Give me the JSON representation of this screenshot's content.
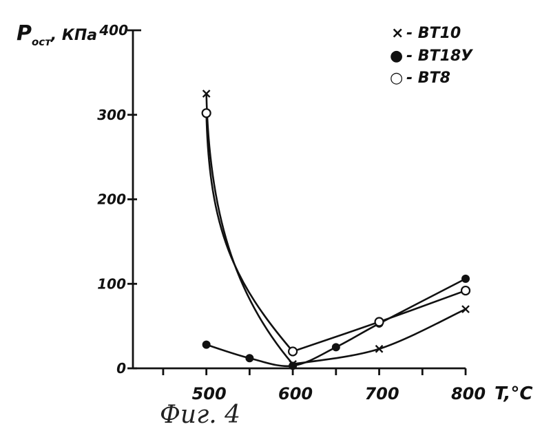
{
  "chart_data": {
    "type": "line",
    "ylabel": "P_ост, КПа",
    "xlabel": "T,°C",
    "xlim": [
      415,
      800
    ],
    "ylim": [
      0,
      400
    ],
    "x_ticks": [
      500,
      600,
      700,
      800
    ],
    "y_ticks": [
      0,
      100,
      200,
      300,
      400
    ],
    "legend_position": "top-right",
    "series": [
      {
        "name": "ВТ10",
        "marker": "x",
        "points": [
          [
            500,
            325
          ],
          [
            600,
            5
          ],
          [
            700,
            23
          ],
          [
            800,
            70
          ]
        ]
      },
      {
        "name": "ВТ18У",
        "marker": "filled-circle",
        "points": [
          [
            500,
            28
          ],
          [
            550,
            12
          ],
          [
            600,
            3
          ],
          [
            650,
            25
          ],
          [
            700,
            53
          ],
          [
            800,
            106
          ]
        ]
      },
      {
        "name": "ВТ8",
        "marker": "open-circle",
        "points": [
          [
            500,
            302
          ],
          [
            600,
            20
          ],
          [
            700,
            55
          ],
          [
            800,
            92
          ]
        ]
      }
    ]
  },
  "axes": {
    "y_title_main": "P",
    "y_title_sub": "ост",
    "y_title_unit": ", КПа",
    "x_title": "T,°C"
  },
  "legend": [
    {
      "symbol": "×",
      "label": "- ВТ10"
    },
    {
      "symbol": "●",
      "label": "- ВТ18У"
    },
    {
      "symbol": "○",
      "label": "- ВТ8"
    }
  ],
  "caption": "Фиг. 4"
}
